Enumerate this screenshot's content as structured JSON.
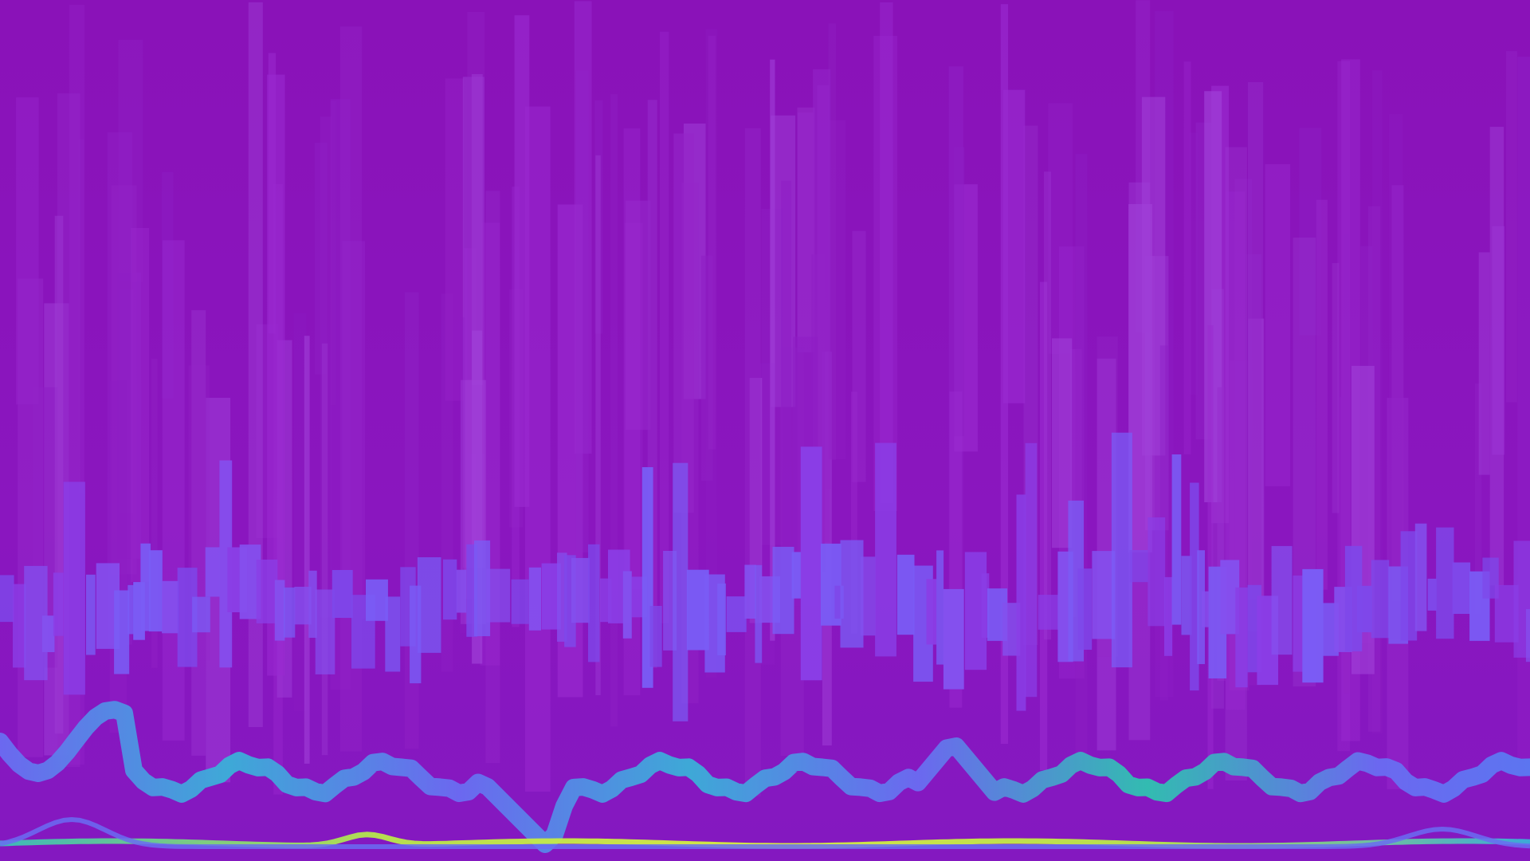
{
  "visualizer": {
    "style": "audio-spectrum-waveform",
    "colors": {
      "background": "#8a14bb",
      "streak_violet": "#9a2ad0",
      "streak_light": "#a040d8",
      "band_violet": "#8a3ee6",
      "band_indigo": "#7a5cf5",
      "wave_blue": "#6a6cf2",
      "wave_cyan": "#3ab0d8",
      "wave_teal": "#2ec4b0",
      "wave_lime": "#b8e84a",
      "wave_yellow": "#d8f040"
    },
    "layers": [
      {
        "name": "vertical-streaks",
        "color_role": "streak_violet"
      },
      {
        "name": "middle-band",
        "color_role": "band_violet"
      },
      {
        "name": "lower-waveform",
        "color_role": "wave_cyan"
      },
      {
        "name": "bottom-baseline",
        "color_role": "wave_lime"
      }
    ]
  }
}
